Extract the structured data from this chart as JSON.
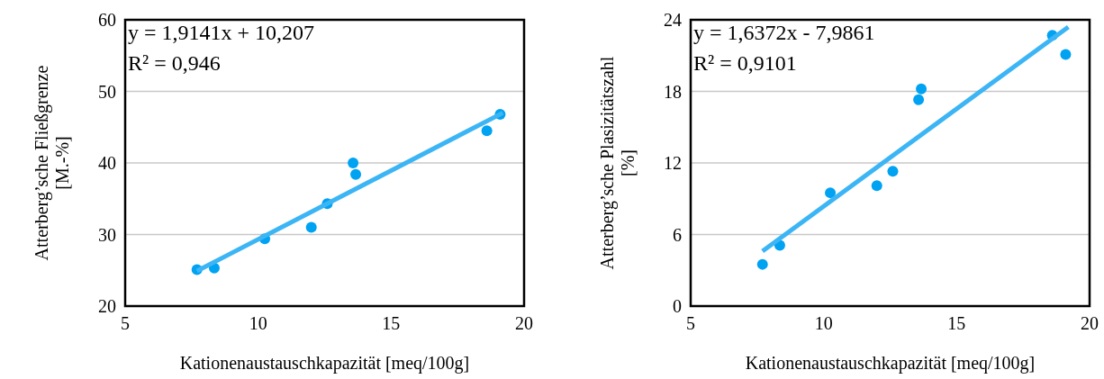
{
  "chart_data": [
    {
      "type": "scatter",
      "xlabel": "Kationenaustauschkapazität [meq/100g]",
      "ylabel": "Atterberg’sche Fließgrenze\n[M.-%]",
      "xlim": [
        5,
        20
      ],
      "xticks": [
        5,
        10,
        15,
        20
      ],
      "ylim": [
        20,
        60
      ],
      "yticks": [
        20,
        30,
        40,
        50,
        60
      ],
      "grid": "y",
      "annotations": [
        "y = 1,9141x + 10,207",
        "R² = 0,946"
      ],
      "series": [
        {
          "marker": "circle",
          "color": "#00a2f2",
          "x": [
            7.7,
            8.35,
            10.25,
            12.0,
            12.6,
            13.57,
            13.67,
            18.6,
            19.1
          ],
          "values": [
            25.1,
            25.3,
            29.4,
            31.0,
            34.3,
            40.0,
            38.4,
            44.5,
            46.8
          ]
        },
        {
          "type": "line",
          "marker": "none",
          "color": "#3cb5f5",
          "x": [
            7.7,
            19.2
          ],
          "values": [
            24.9,
            47.0
          ]
        }
      ]
    },
    {
      "type": "scatter",
      "xlabel": "Kationenaustauschkapazität [meq/100g]",
      "ylabel": "Atterberg’sche Plasizitätszahl\n[%]",
      "xlim": [
        5,
        20
      ],
      "xticks": [
        5,
        10,
        15,
        20
      ],
      "ylim": [
        0,
        24
      ],
      "yticks": [
        0,
        6,
        12,
        18,
        24
      ],
      "grid": "y",
      "annotations": [
        "y = 1,6372x - 7,9861",
        "R² = 0,9101"
      ],
      "series": [
        {
          "marker": "circle",
          "color": "#00a2f2",
          "x": [
            7.7,
            8.35,
            10.25,
            12.0,
            12.6,
            13.57,
            13.67,
            18.6,
            19.1
          ],
          "values": [
            3.5,
            5.1,
            9.5,
            10.1,
            11.3,
            17.3,
            18.2,
            22.7,
            21.1
          ]
        },
        {
          "type": "line",
          "marker": "none",
          "color": "#3cb5f5",
          "x": [
            7.7,
            19.2
          ],
          "values": [
            4.6,
            23.4
          ]
        }
      ]
    }
  ]
}
